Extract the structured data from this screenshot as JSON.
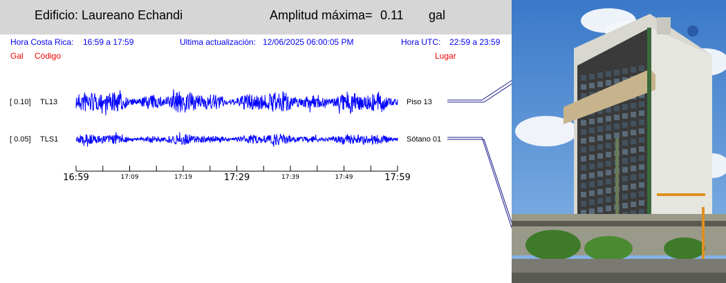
{
  "header": {
    "building_prefix": "Edificio:",
    "building_name": "Laureano Echandi",
    "amplitude_label": "Amplitud máxima=",
    "amplitude_value": "0.11",
    "amplitude_unit": "gal"
  },
  "info": {
    "local_label": "Hora Costa Rica:",
    "local_range": "16:59 a 17:59",
    "update_label": "Ultima actualización:",
    "update_value": "12/06/2025 06:00:05 PM",
    "utc_label": "Hora UTC:",
    "utc_range": "22:59 a 23:59"
  },
  "columns": {
    "gal": "Gal",
    "code": "Código",
    "place": "Lugar"
  },
  "chart_data": {
    "type": "line",
    "xlabel": "",
    "ylabel": "",
    "time_range": [
      "16:59",
      "17:59"
    ],
    "major_ticks": [
      "16:59",
      "17:29",
      "17:59"
    ],
    "minor_ticks": [
      "17:09",
      "17:19",
      "17:39",
      "17:49"
    ],
    "series": [
      {
        "code": "TL13",
        "amp_label": "[   0.10]",
        "place": "Piso 13",
        "max_amplitude": 0.1,
        "color": "#0000ff"
      },
      {
        "code": "TLS1",
        "amp_label": "[   0.05]",
        "place": "Sótano 01",
        "max_amplitude": 0.05,
        "color": "#0000ff"
      }
    ]
  },
  "colors": {
    "header_bg": "#d6d6d6",
    "info_text": "#0000ee",
    "column_text": "#ee0000",
    "trace": "#0000ff"
  }
}
